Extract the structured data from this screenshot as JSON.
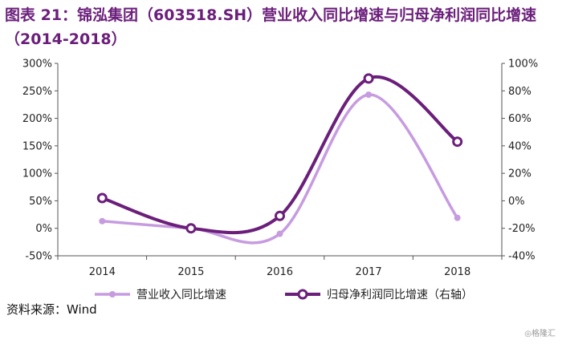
{
  "title_line1": "图表 21：锦泓集团（603518.SH）营业收入同比增速与归母净利润同比增速",
  "title_line2": "（2014-2018）",
  "source": "资料来源：Wind",
  "watermark": "◎格隆汇",
  "chart_data": {
    "type": "line",
    "x": [
      "2014",
      "2015",
      "2016",
      "2017",
      "2018"
    ],
    "y_left_ticks": [
      "300%",
      "250%",
      "200%",
      "150%",
      "100%",
      "50%",
      "0%",
      "-50%"
    ],
    "y_right_ticks": [
      "100%",
      "80%",
      "60%",
      "40%",
      "20%",
      "0%",
      "-20%",
      "-40%"
    ],
    "ylim_left": [
      -50,
      300
    ],
    "ylim_right": [
      -40,
      100
    ],
    "series": [
      {
        "name": "营业收入同比增速",
        "axis": "left",
        "color": "#c79be0",
        "values": [
          13,
          0,
          -10,
          243,
          19
        ]
      },
      {
        "name": "归母净利润同比增速（右轴）",
        "axis": "right",
        "color": "#6b1f7b",
        "values": [
          2,
          -20,
          -11,
          89,
          43
        ]
      }
    ]
  }
}
